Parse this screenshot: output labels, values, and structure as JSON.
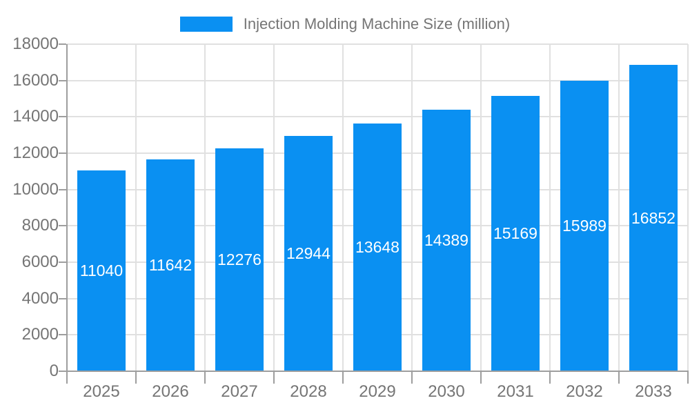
{
  "legend": {
    "label": "Injection Molding Machine Size (million)"
  },
  "colors": {
    "bar": "#0a90f2",
    "axis": "#9e9e9e",
    "grid": "#e0e0e0",
    "tick_label": "#757575",
    "value_label": "#ffffff",
    "background": "#ffffff"
  },
  "chart_data": {
    "type": "bar",
    "title": "",
    "xlabel": "",
    "ylabel": "",
    "categories": [
      "2025",
      "2026",
      "2027",
      "2028",
      "2029",
      "2030",
      "2031",
      "2032",
      "2033"
    ],
    "values": [
      11040,
      11642,
      12276,
      12944,
      13648,
      14389,
      15169,
      15989,
      16852
    ],
    "series_name": "Injection Molding Machine Size (million)",
    "ylim": [
      0,
      18000
    ],
    "ytick_step": 2000,
    "yticks": [
      0,
      2000,
      4000,
      6000,
      8000,
      10000,
      12000,
      14000,
      16000,
      18000
    ],
    "grid": true,
    "legend_position": "top",
    "value_label_position": "inside-center"
  }
}
